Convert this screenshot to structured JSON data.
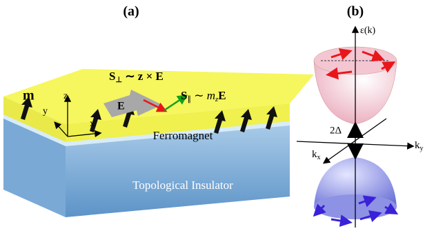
{
  "panel_a": {
    "label": "(a)",
    "s_perp": {
      "base": "S",
      "sub": "⊥",
      "rest": " ∼ z × E"
    },
    "s_par": {
      "base": "S",
      "sub": "∥",
      "mid": " ∼ ",
      "m": "m",
      "msub": "z",
      "end": "E"
    },
    "moment": "m",
    "axis_z": "z",
    "axis_y": "y",
    "axis_x": "x",
    "field": "E",
    "ferromagnet": "Ferromagnet",
    "insulator": "Topological Insulator"
  },
  "panel_b": {
    "label": "(b)",
    "energy": "ε(k)",
    "gap": "2Δ",
    "kx": {
      "base": "k",
      "sub": "x"
    },
    "ky": {
      "base": "k",
      "sub": "y"
    }
  }
}
